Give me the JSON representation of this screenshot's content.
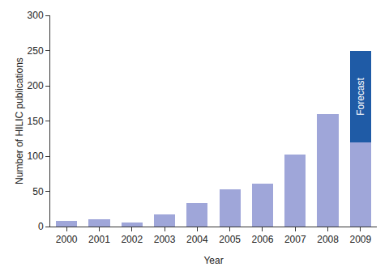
{
  "chart_data": {
    "type": "bar",
    "stacked": true,
    "x_label": "Year",
    "y_label": "Number of HILIC publications",
    "categories": [
      "2000",
      "2001",
      "2002",
      "2003",
      "2004",
      "2005",
      "2006",
      "2007",
      "2008",
      "2009"
    ],
    "series": [
      {
        "color": "#9fa6d9",
        "values": [
          8,
          10,
          6,
          17,
          33,
          53,
          61,
          102,
          160,
          120
        ]
      },
      {
        "name": "Forecast",
        "color": "#1f5ba6",
        "values": [
          null,
          null,
          null,
          null,
          null,
          null,
          null,
          null,
          null,
          130
        ]
      }
    ],
    "ylim": [
      0,
      300
    ],
    "yticks": [
      0,
      50,
      100,
      150,
      200,
      250,
      300
    ],
    "grid": false
  }
}
